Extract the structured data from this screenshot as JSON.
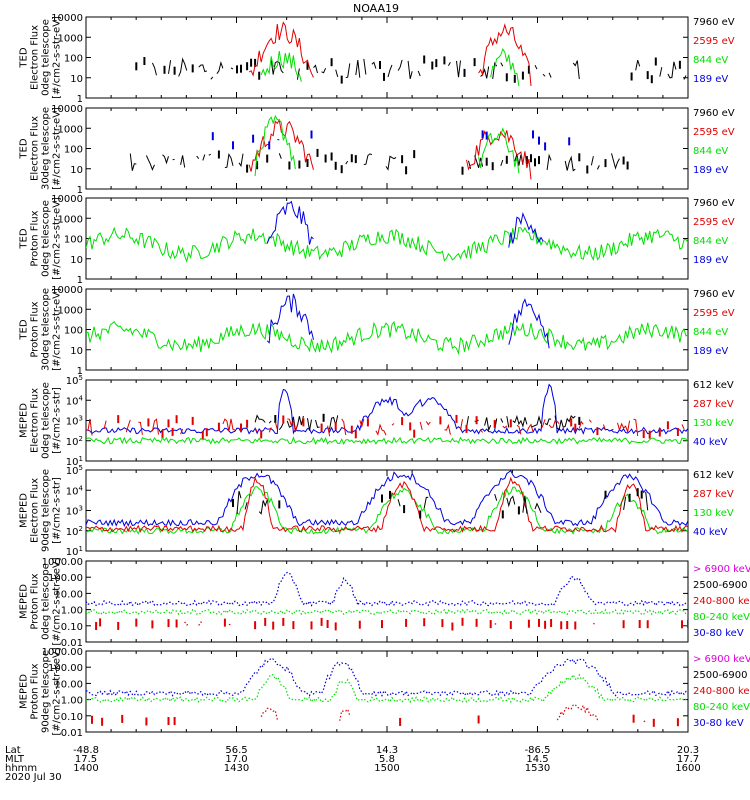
{
  "figure_title": "NOAA19",
  "colors": {
    "frame": "#000000",
    "black": "#000000",
    "red": "#e00000",
    "green": "#00e000",
    "blue": "#0000e0",
    "magenta": "#e000e0"
  },
  "time_axis": {
    "rows": [
      {
        "label": "Lat",
        "values": [
          "-48.8",
          "56.5",
          "14.3",
          "-86.5",
          "20.3"
        ]
      },
      {
        "label": "MLT",
        "values": [
          "17.5",
          "17.0",
          "5.8",
          "14.5",
          "17.7"
        ]
      },
      {
        "label": "hhmm",
        "values": [
          "1400",
          "1430",
          "1500",
          "1530",
          "1600"
        ]
      }
    ],
    "date": "2020 Jul 30"
  },
  "chart_data": [
    {
      "type": "line",
      "ylabel": [
        "TED",
        "Electron Flux",
        "0deg telescope",
        "[#/cm2-s-str-eV]"
      ],
      "y_scale": "log",
      "ylim": [
        1,
        10000
      ],
      "y_ticks": [
        "1",
        "10",
        "100",
        "1000",
        "10000"
      ],
      "legend": [
        {
          "name": "7960 eV",
          "color": "black"
        },
        {
          "name": "2595 eV",
          "color": "red"
        },
        {
          "name": "844 eV",
          "color": "green"
        },
        {
          "name": "189 eV",
          "color": "blue"
        }
      ],
      "series": [
        {
          "color": "black",
          "kind": "sparse",
          "base_log": 0.9,
          "spread": 0.7,
          "prob": 0.55,
          "segments": [
            [
              0.08,
              0.82
            ],
            [
              0.9,
              1.0
            ]
          ]
        },
        {
          "color": "red",
          "kind": "burst",
          "bursts": [
            [
              0.27,
              0.38,
              3.3
            ],
            [
              0.65,
              0.74,
              3.3
            ]
          ],
          "base_log": 0.9
        },
        {
          "color": "green",
          "kind": "burst",
          "bursts": [
            [
              0.29,
              0.36,
              2.0
            ],
            [
              0.67,
              0.72,
              2.0
            ]
          ],
          "base_log": 1.0
        }
      ]
    },
    {
      "type": "line",
      "ylabel": [
        "TED",
        "Electron Flux",
        "30deg telescope",
        "[#/cm2-s-str-eV]"
      ],
      "y_scale": "log",
      "ylim": [
        1,
        10000
      ],
      "y_ticks": [
        "1",
        "10",
        "100",
        "1000",
        "10000"
      ],
      "legend": [
        {
          "name": "7960 eV",
          "color": "black"
        },
        {
          "name": "2595 eV",
          "color": "red"
        },
        {
          "name": "844 eV",
          "color": "green"
        },
        {
          "name": "189 eV",
          "color": "blue"
        }
      ],
      "series": [
        {
          "color": "black",
          "kind": "sparse",
          "base_log": 0.9,
          "spread": 0.6,
          "prob": 0.45,
          "segments": [
            [
              0.05,
              0.55
            ],
            [
              0.6,
              0.9
            ]
          ]
        },
        {
          "color": "red",
          "kind": "burst",
          "bursts": [
            [
              0.27,
              0.38,
              3.0
            ],
            [
              0.63,
              0.74,
              2.8
            ]
          ],
          "base_log": 0.9
        },
        {
          "color": "green",
          "kind": "burst",
          "bursts": [
            [
              0.28,
              0.35,
              3.2
            ],
            [
              0.65,
              0.72,
              2.6
            ]
          ],
          "base_log": 1.0
        },
        {
          "color": "blue",
          "kind": "sparse",
          "base_log": 2.0,
          "spread": 0.5,
          "prob": 0.08,
          "segments": [
            [
              0.2,
              0.4
            ],
            [
              0.6,
              0.88
            ]
          ]
        }
      ]
    },
    {
      "type": "line",
      "ylabel": [
        "TED",
        "Proton Flux",
        "0deg telescope",
        "[#/cm2-s-str-eV]"
      ],
      "y_scale": "log",
      "ylim": [
        1,
        10000
      ],
      "y_ticks": [
        "1",
        "10",
        "100",
        "1000",
        "10000"
      ],
      "legend": [
        {
          "name": "7960 eV",
          "color": "black"
        },
        {
          "name": "2595 eV",
          "color": "red"
        },
        {
          "name": "844 eV",
          "color": "green"
        },
        {
          "name": "189 eV",
          "color": "blue"
        }
      ],
      "series": [
        {
          "color": "green",
          "kind": "wave",
          "base_log": 1.7,
          "amp": 0.9,
          "noise": 0.8
        },
        {
          "color": "blue",
          "kind": "burst",
          "bursts": [
            [
              0.3,
              0.38,
              3.5
            ],
            [
              0.7,
              0.76,
              3.0
            ]
          ],
          "base_log": 1.5
        }
      ]
    },
    {
      "type": "line",
      "ylabel": [
        "TED",
        "Proton Flux",
        "30deg telescope",
        "[#/cm2-s-str-eV]"
      ],
      "y_scale": "log",
      "ylim": [
        1,
        10000
      ],
      "y_ticks": [
        "1",
        "10",
        "100",
        "1000",
        "10000"
      ],
      "legend": [
        {
          "name": "7960 eV",
          "color": "black"
        },
        {
          "name": "2595 eV",
          "color": "red"
        },
        {
          "name": "844 eV",
          "color": "green"
        },
        {
          "name": "189 eV",
          "color": "blue"
        }
      ],
      "series": [
        {
          "color": "green",
          "kind": "wave",
          "base_log": 1.6,
          "amp": 0.8,
          "noise": 0.8
        },
        {
          "color": "blue",
          "kind": "burst",
          "bursts": [
            [
              0.3,
              0.38,
              3.3
            ],
            [
              0.7,
              0.77,
              3.2
            ]
          ],
          "base_log": 1.5
        }
      ]
    },
    {
      "type": "line",
      "ylabel": [
        "MEPED",
        "Electron Flux",
        "0deg telescope",
        "[#/cm2-s-str]"
      ],
      "y_scale": "log",
      "ylim": [
        10,
        100000
      ],
      "y_ticks": [
        "10^1",
        "10^2",
        "10^3",
        "10^4",
        "10^5"
      ],
      "legend": [
        {
          "name": "612 keV",
          "color": "black"
        },
        {
          "name": "287 keV",
          "color": "red"
        },
        {
          "name": "130 keV",
          "color": "green"
        },
        {
          "name": "40 keV",
          "color": "blue"
        }
      ],
      "series": [
        {
          "color": "blue",
          "kind": "hump",
          "humps": [
            [
              0.45,
              0.55,
              4.0
            ],
            [
              0.52,
              0.62,
              4.0
            ]
          ],
          "spikes": [
            [
              0.33,
              4.6
            ],
            [
              0.77,
              4.7
            ]
          ],
          "base_log": 2.5
        },
        {
          "color": "black",
          "kind": "sparse",
          "base_log": 2.5,
          "spread": 0.5,
          "prob": 0.8,
          "segments": [
            [
              0.28,
              0.42
            ],
            [
              0.63,
              0.82
            ]
          ]
        },
        {
          "color": "red",
          "kind": "sparse",
          "base_log": 2.2,
          "spread": 0.6,
          "prob": 0.5,
          "segments": [
            [
              0.0,
              1.0
            ]
          ]
        },
        {
          "color": "green",
          "kind": "flat",
          "base_log": 2.0
        }
      ]
    },
    {
      "type": "line",
      "ylabel": [
        "MEPED",
        "Electron Flux",
        "90deg telescope",
        "[#/cm2-s-str]"
      ],
      "y_scale": "log",
      "ylim": [
        10,
        100000
      ],
      "y_ticks": [
        "10^1",
        "10^2",
        "10^3",
        "10^4",
        "10^5"
      ],
      "legend": [
        {
          "name": "612 keV",
          "color": "black"
        },
        {
          "name": "287 keV",
          "color": "red"
        },
        {
          "name": "130 keV",
          "color": "green"
        },
        {
          "name": "40 keV",
          "color": "blue"
        }
      ],
      "series": [
        {
          "color": "blue",
          "kind": "hump",
          "humps": [
            [
              0.22,
              0.35,
              4.8
            ],
            [
              0.45,
              0.6,
              4.8
            ],
            [
              0.64,
              0.78,
              4.8
            ],
            [
              0.84,
              0.96,
              4.6
            ]
          ],
          "base_log": 2.4
        },
        {
          "color": "green",
          "kind": "hump",
          "humps": [
            [
              0.24,
              0.33,
              4.0
            ],
            [
              0.47,
              0.58,
              3.9
            ],
            [
              0.66,
              0.76,
              4.0
            ],
            [
              0.86,
              0.94,
              3.6
            ]
          ],
          "base_log": 2.0
        },
        {
          "color": "red",
          "kind": "hump",
          "humps": [
            [
              0.26,
              0.31,
              4.5
            ],
            [
              0.49,
              0.56,
              4.3
            ],
            [
              0.68,
              0.74,
              4.5
            ],
            [
              0.88,
              0.93,
              4.2
            ]
          ],
          "base_log": 2.1
        },
        {
          "color": "black",
          "kind": "sparse",
          "base_log": 2.8,
          "spread": 0.8,
          "prob": 0.5,
          "segments": [
            [
              0.24,
              0.33
            ],
            [
              0.48,
              0.57
            ],
            [
              0.66,
              0.76
            ],
            [
              0.86,
              0.94
            ]
          ]
        }
      ]
    },
    {
      "type": "line",
      "ylabel": [
        "MEPED",
        "Proton Flux",
        "0deg telescope",
        "[#/cm2-s-str-keV]"
      ],
      "y_scale": "log",
      "ylim": [
        0.01,
        1000
      ],
      "y_ticks": [
        "0.01",
        "0.10",
        "1.00",
        "10.00",
        "100.00",
        "1000.00"
      ],
      "legend": [
        {
          "name": "> 6900 keV",
          "color": "magenta"
        },
        {
          "name": "2500-6900",
          "color": "black"
        },
        {
          "name": "240-800 ke",
          "color": "red"
        },
        {
          "name": "80-240 keV",
          "color": "green"
        },
        {
          "name": "30-80 keV",
          "color": "blue"
        }
      ],
      "series": [
        {
          "color": "blue",
          "kind": "hump",
          "humps": [
            [
              0.31,
              0.36,
              2.1
            ],
            [
              0.41,
              0.45,
              1.8
            ],
            [
              0.78,
              0.84,
              2.0
            ]
          ],
          "base_log": 0.4,
          "dotted": true
        },
        {
          "color": "green",
          "kind": "flat",
          "base_log": -0.15,
          "dotted": true
        },
        {
          "color": "red",
          "kind": "flat",
          "base_log": -0.9,
          "dotted": true,
          "sparse_prob": 0.15
        }
      ]
    },
    {
      "type": "line",
      "ylabel": [
        "MEPED",
        "Proton Flux",
        "90deg telescope",
        "[#/cm2-s-str-keV]"
      ],
      "y_scale": "log",
      "ylim": [
        0.01,
        1000
      ],
      "y_ticks": [
        "0.01",
        "0.10",
        "1.00",
        "10.00",
        "100.00",
        "1000.00"
      ],
      "legend": [
        {
          "name": "> 6900 keV",
          "color": "magenta"
        },
        {
          "name": "2500-6900",
          "color": "black"
        },
        {
          "name": "240-800 ke",
          "color": "red"
        },
        {
          "name": "80-240 keV",
          "color": "green"
        },
        {
          "name": "30-80 keV",
          "color": "blue"
        }
      ],
      "series": [
        {
          "color": "blue",
          "kind": "hump",
          "humps": [
            [
              0.26,
              0.36,
              2.4
            ],
            [
              0.39,
              0.46,
              2.2
            ],
            [
              0.74,
              0.88,
              2.4
            ]
          ],
          "base_log": 0.4,
          "dotted": true
        },
        {
          "color": "green",
          "kind": "hump",
          "humps": [
            [
              0.28,
              0.34,
              1.4
            ],
            [
              0.41,
              0.45,
              1.2
            ],
            [
              0.76,
              0.86,
              1.4
            ]
          ],
          "base_log": 0.0,
          "dotted": true
        },
        {
          "color": "red",
          "kind": "hump",
          "humps": [
            [
              0.29,
              0.32,
              -0.5
            ],
            [
              0.42,
              0.44,
              -0.6
            ],
            [
              0.78,
              0.85,
              -0.4
            ]
          ],
          "base_log": -1.3,
          "dotted": true,
          "sparse_prob": 0.05
        }
      ]
    }
  ]
}
